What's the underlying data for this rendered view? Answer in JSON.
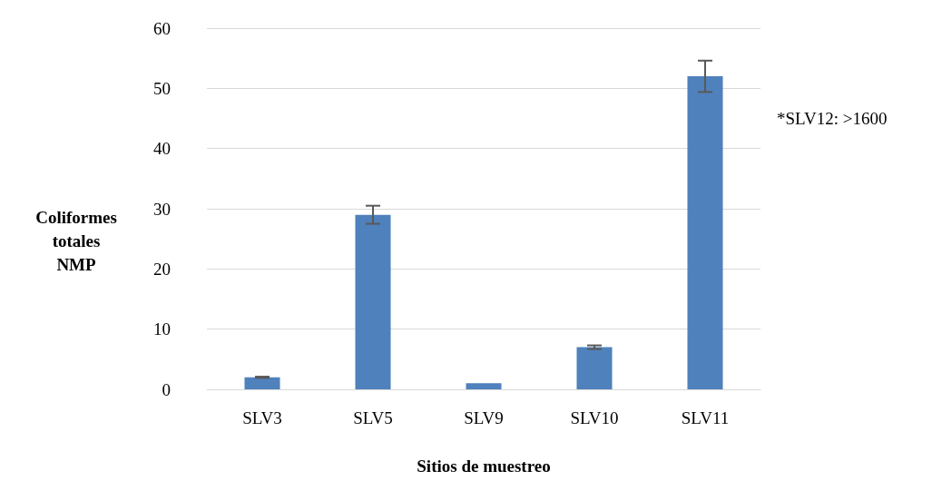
{
  "chart_data": {
    "type": "bar",
    "categories": [
      "SLV3",
      "SLV5",
      "SLV9",
      "SLV10",
      "SLV11"
    ],
    "values": [
      2,
      29,
      1,
      7,
      52
    ],
    "errors": [
      0.1,
      1.5,
      null,
      0.3,
      2.6
    ],
    "color": "#4f81bd",
    "ylim": [
      0,
      60
    ],
    "yticks": [
      0,
      10,
      20,
      30,
      40,
      50,
      60
    ],
    "grid": "y",
    "ylabel": "Coliformes\ntotales\nNMP",
    "xlabel": "Sitios de muestreo",
    "annotations": [
      "*SLV12: >1600"
    ]
  }
}
